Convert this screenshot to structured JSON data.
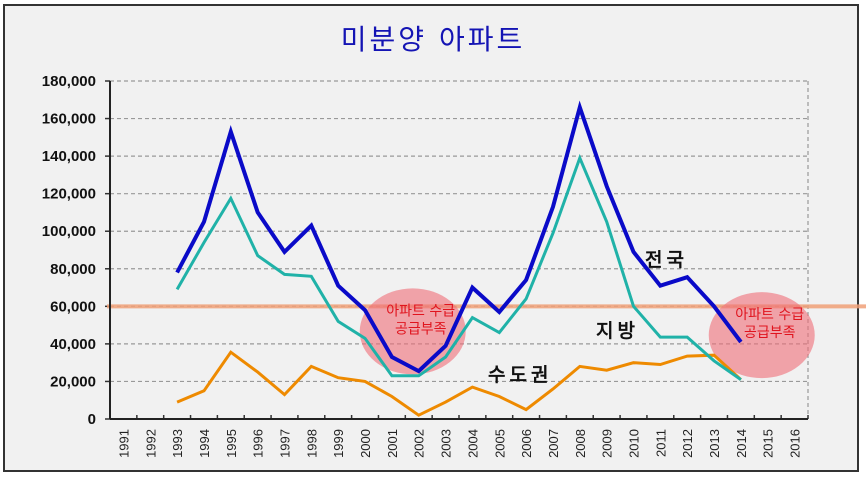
{
  "chart_data": {
    "type": "line",
    "title": "미분양 아파트",
    "xlabel": "",
    "ylabel": "",
    "ylim": [
      0,
      180000
    ],
    "yticks": [
      "0",
      "20,000",
      "40,000",
      "60,000",
      "80,000",
      "100,000",
      "120,000",
      "140,000",
      "160,000",
      "180,000"
    ],
    "ytick_values": [
      0,
      20000,
      40000,
      60000,
      80000,
      100000,
      120000,
      140000,
      160000,
      180000
    ],
    "categories": [
      "1991",
      "1992",
      "1993",
      "1994",
      "1995",
      "1996",
      "1997",
      "1998",
      "1999",
      "2000",
      "2001",
      "2002",
      "2003",
      "2004",
      "2005",
      "2006",
      "2007",
      "2008",
      "2009",
      "2010",
      "2011",
      "2012",
      "2013",
      "2014",
      "2015",
      "2016"
    ],
    "grid": true,
    "series": [
      {
        "name": "전국",
        "color": "#0a0ac8",
        "values": [
          null,
          null,
          78000,
          105000,
          153000,
          110000,
          89000,
          103000,
          71000,
          58000,
          33000,
          25500,
          39000,
          70000,
          57000,
          74000,
          113000,
          166000,
          124000,
          89000,
          71000,
          75500,
          60000,
          41000,
          null,
          null
        ]
      },
      {
        "name": "지방",
        "color": "#20b2a8",
        "values": [
          null,
          null,
          69000,
          94000,
          117500,
          87000,
          77000,
          76000,
          52000,
          43000,
          23000,
          23000,
          33000,
          54000,
          46000,
          64000,
          99000,
          139000,
          105000,
          60000,
          43600,
          43600,
          31000,
          21000,
          null,
          null
        ]
      },
      {
        "name": "수도권",
        "color": "#ee8a00",
        "values": [
          null,
          null,
          9000,
          15000,
          35600,
          25000,
          13000,
          28000,
          22000,
          20000,
          12000,
          2000,
          9000,
          17000,
          12000,
          5000,
          16000,
          28000,
          26000,
          30000,
          29000,
          33500,
          34000,
          21000,
          null,
          null
        ]
      }
    ],
    "reference_line": {
      "value": 60000,
      "color": "#f0a078"
    },
    "annotations": [
      {
        "line1": "아파트 수급",
        "line2": "공급부족",
        "center_year": "2002",
        "center_value": 44000
      },
      {
        "line1": "아파트 수급",
        "line2": "공급부족",
        "center_year": "2015",
        "center_value": 42000
      }
    ],
    "highlight_color": "#f06e78"
  }
}
